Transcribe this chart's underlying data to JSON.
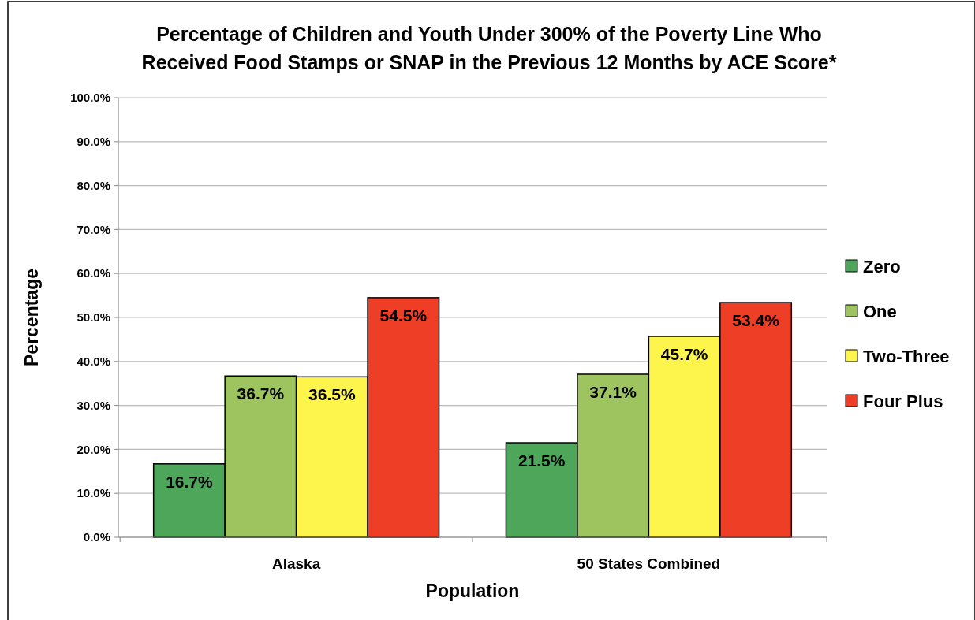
{
  "chart_data": {
    "type": "bar",
    "title": "Percentage of Children and Youth Under 300% of the Poverty Line Who Received Food Stamps or SNAP in the Previous 12 Months by ACE Score*",
    "xlabel": "Population",
    "ylabel": "Percentage",
    "categories": [
      "Alaska",
      "50 States Combined"
    ],
    "series": [
      {
        "name": "Zero",
        "color": "#4ea65a",
        "values": [
          16.7,
          21.5
        ],
        "value_labels": [
          "16.7%",
          "21.5%"
        ]
      },
      {
        "name": "One",
        "color": "#9dc45e",
        "values": [
          36.7,
          37.1
        ],
        "value_labels": [
          "36.7%",
          "37.1%"
        ]
      },
      {
        "name": "Two-Three",
        "color": "#fdf54b",
        "values": [
          36.5,
          45.7
        ],
        "value_labels": [
          "36.5%",
          "45.7%"
        ]
      },
      {
        "name": "Four Plus",
        "color": "#ee3e25",
        "values": [
          54.5,
          53.4
        ],
        "value_labels": [
          "54.5%",
          "53.4%"
        ]
      }
    ],
    "ylim": [
      0,
      100
    ],
    "yticks": [
      {
        "value": 0,
        "label": "0.0%"
      },
      {
        "value": 10,
        "label": "10.0%"
      },
      {
        "value": 20,
        "label": "20.0%"
      },
      {
        "value": 30,
        "label": "30.0%"
      },
      {
        "value": 40,
        "label": "40.0%"
      },
      {
        "value": 50,
        "label": "50.0%"
      },
      {
        "value": 60,
        "label": "60.0%"
      },
      {
        "value": 70,
        "label": "70.0%"
      },
      {
        "value": 80,
        "label": "80.0%"
      },
      {
        "value": 90,
        "label": "90.0%"
      },
      {
        "value": 100,
        "label": "100.0%"
      }
    ],
    "grid": "y",
    "legend": "right"
  }
}
